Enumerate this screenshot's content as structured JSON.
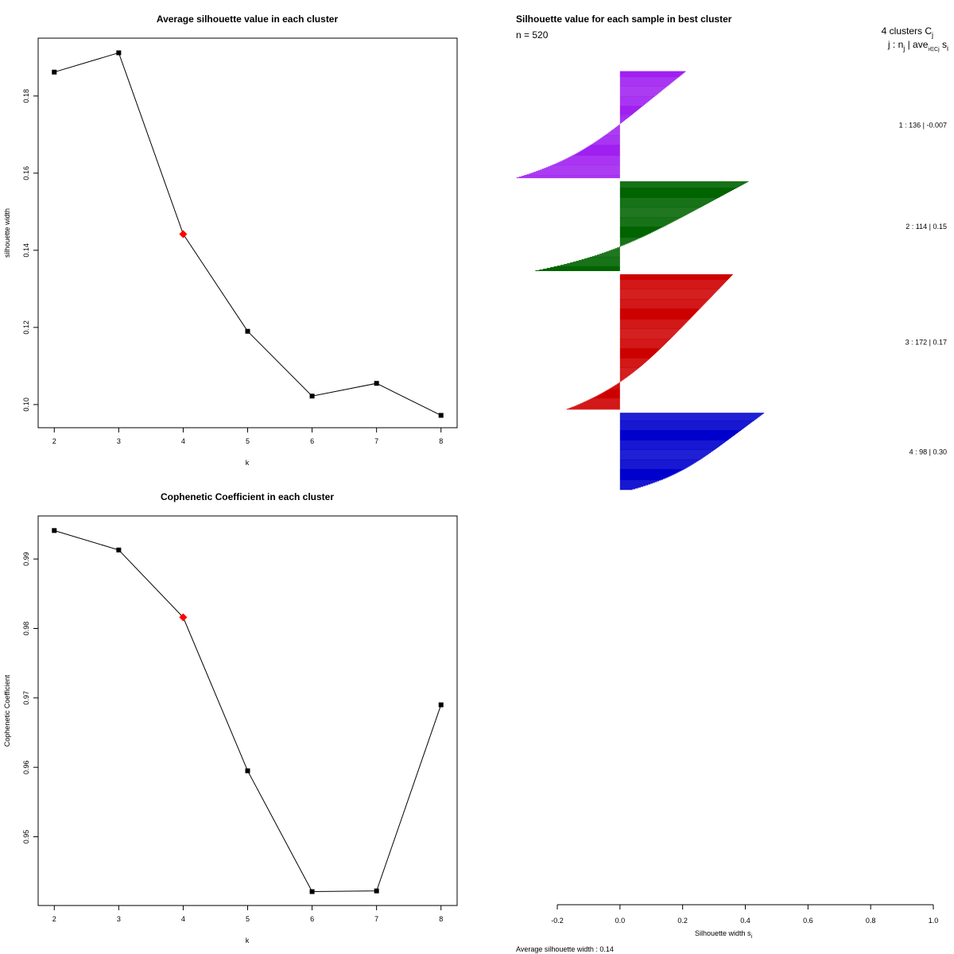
{
  "chart_data": [
    {
      "type": "line",
      "title": "Average silhouette value in each cluster",
      "xlabel": "k",
      "ylabel": "silhouette width",
      "x": [
        2,
        3,
        4,
        5,
        6,
        7,
        8
      ],
      "values": [
        0.1862,
        0.1912,
        0.1442,
        0.119,
        0.1022,
        0.1055,
        0.0972
      ],
      "highlight_k": 4,
      "highlight_color": "#ff0000",
      "xlim": [
        1.75,
        8.25
      ],
      "ylim": [
        0.094,
        0.195
      ],
      "xticks": [
        "2",
        "3",
        "4",
        "5",
        "6",
        "7",
        "8"
      ],
      "yticks": [
        {
          "v": 0.1,
          "label": "0.10"
        },
        {
          "v": 0.12,
          "label": "0.12"
        },
        {
          "v": 0.14,
          "label": "0.14"
        },
        {
          "v": 0.16,
          "label": "0.16"
        },
        {
          "v": 0.18,
          "label": "0.18"
        }
      ]
    },
    {
      "type": "line",
      "title": "Cophenetic Coefficient in each cluster",
      "xlabel": "k",
      "ylabel": "Cophenetic Coefficient",
      "x": [
        2,
        3,
        4,
        5,
        6,
        7,
        8
      ],
      "values": [
        0.9941,
        0.9913,
        0.9816,
        0.9595,
        0.9421,
        0.9422,
        0.969
      ],
      "highlight_k": 4,
      "highlight_color": "#ff0000",
      "xlim": [
        1.75,
        8.25
      ],
      "ylim": [
        0.9401,
        0.9962
      ],
      "xticks": [
        "2",
        "3",
        "4",
        "5",
        "6",
        "7",
        "8"
      ],
      "yticks": [
        {
          "v": 0.95,
          "label": "0.95"
        },
        {
          "v": 0.96,
          "label": "0.96"
        },
        {
          "v": 0.97,
          "label": "0.97"
        },
        {
          "v": 0.98,
          "label": "0.98"
        },
        {
          "v": 0.99,
          "label": "0.99"
        }
      ]
    },
    {
      "type": "bar",
      "orientation": "horizontal",
      "title": "Silhouette value for each sample in best cluster",
      "n_label": "n = 520",
      "xlabel": "Silhouette width s",
      "xlabel_sub": "i",
      "xlim": [
        -0.2,
        1.0
      ],
      "xticks": [
        "-0.2",
        "0.0",
        "0.2",
        "0.4",
        "0.6",
        "0.8",
        "1.0"
      ],
      "footer": "Average silhouette width :  0.14",
      "header_line1": "4  clusters  C",
      "header_line1_sub": "j",
      "header_line2": "j :  n",
      "header_line2_sub": "j",
      "header_line2_tail": " | ave",
      "header_line2_sub2": "i∈Cj",
      "header_line2_end": " s",
      "header_line2_sub3": "i",
      "clusters": [
        {
          "label": "1 :   136  |  -0.007",
          "n": 136,
          "avg": -0.007,
          "max": 0.21,
          "min": -0.33,
          "color": "#a020f0"
        },
        {
          "label": "2 :   114  |  0.15",
          "n": 114,
          "avg": 0.15,
          "max": 0.41,
          "min": -0.27,
          "color": "#006400"
        },
        {
          "label": "3 :   172  |  0.17",
          "n": 172,
          "avg": 0.17,
          "max": 0.36,
          "min": -0.17,
          "color": "#cd0000"
        },
        {
          "label": "4 :   98  |  0.30",
          "n": 98,
          "avg": 0.3,
          "max": 0.46,
          "min": 0.04,
          "color": "#0000cd"
        }
      ]
    }
  ]
}
